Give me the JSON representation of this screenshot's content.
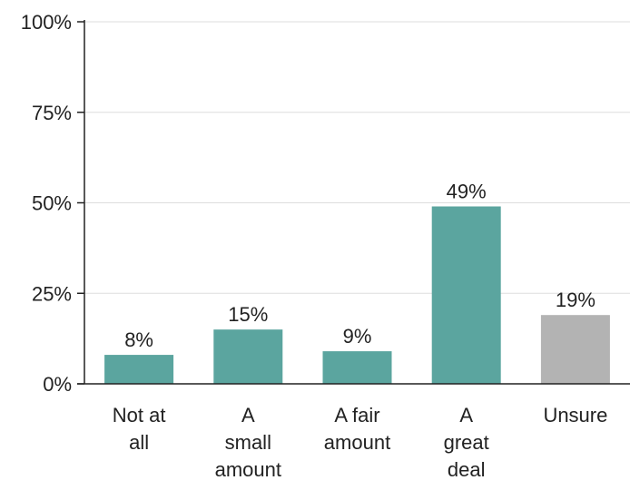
{
  "chart_data": {
    "type": "bar",
    "categories": [
      "Not at all",
      "A small amount",
      "A fair amount",
      "A great deal",
      "Unsure"
    ],
    "category_label_lines": [
      [
        "Not at",
        "all"
      ],
      [
        "A",
        "small",
        "amount"
      ],
      [
        "A fair",
        "amount"
      ],
      [
        "A",
        "great",
        "deal"
      ],
      [
        "Unsure"
      ]
    ],
    "values": [
      8,
      15,
      9,
      49,
      19
    ],
    "data_labels": [
      "8%",
      "15%",
      "9%",
      "49%",
      "19%"
    ],
    "bar_colors": [
      "#5ba59f",
      "#5ba59f",
      "#5ba59f",
      "#5ba59f",
      "#b3b3b3"
    ],
    "ylim": [
      0,
      100
    ],
    "yticks": [
      0,
      25,
      50,
      75,
      100
    ],
    "ytick_labels": [
      "0%",
      "25%",
      "50%",
      "75%",
      "100%"
    ],
    "grid": true,
    "legend": "none"
  }
}
